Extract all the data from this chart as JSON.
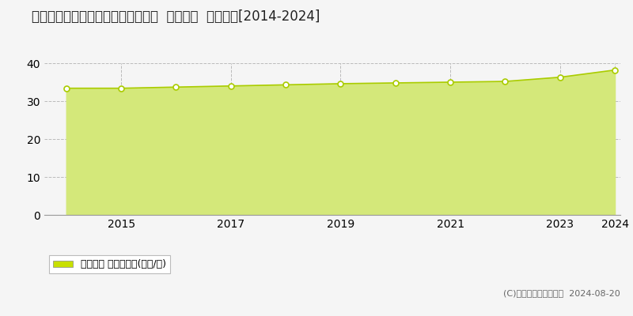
{
  "title": "岡山県倉敷市宮前字河間２６番４外  地価公示  地価推移[2014-2024]",
  "years": [
    2014,
    2015,
    2016,
    2017,
    2018,
    2019,
    2020,
    2021,
    2022,
    2023,
    2024
  ],
  "values": [
    33.4,
    33.4,
    33.7,
    34.0,
    34.3,
    34.6,
    34.8,
    35.0,
    35.2,
    36.3,
    38.2
  ],
  "line_color": "#aacc00",
  "fill_color": "#d4e87a",
  "fill_alpha": 1.0,
  "marker_color": "white",
  "marker_edge_color": "#aacc00",
  "bg_color": "#f5f5f5",
  "plot_bg_color": "#f5f5f5",
  "grid_color": "#bbbbbb",
  "ylim": [
    0,
    40
  ],
  "yticks": [
    0,
    10,
    20,
    30,
    40
  ],
  "legend_label": "地価公示 平均坪単価(万円/坪)",
  "legend_color": "#c8e000",
  "copyright_text": "(C)土地価格ドットコム  2024-08-20",
  "title_fontsize": 12,
  "tick_fontsize": 10,
  "legend_fontsize": 9,
  "copyright_fontsize": 8
}
